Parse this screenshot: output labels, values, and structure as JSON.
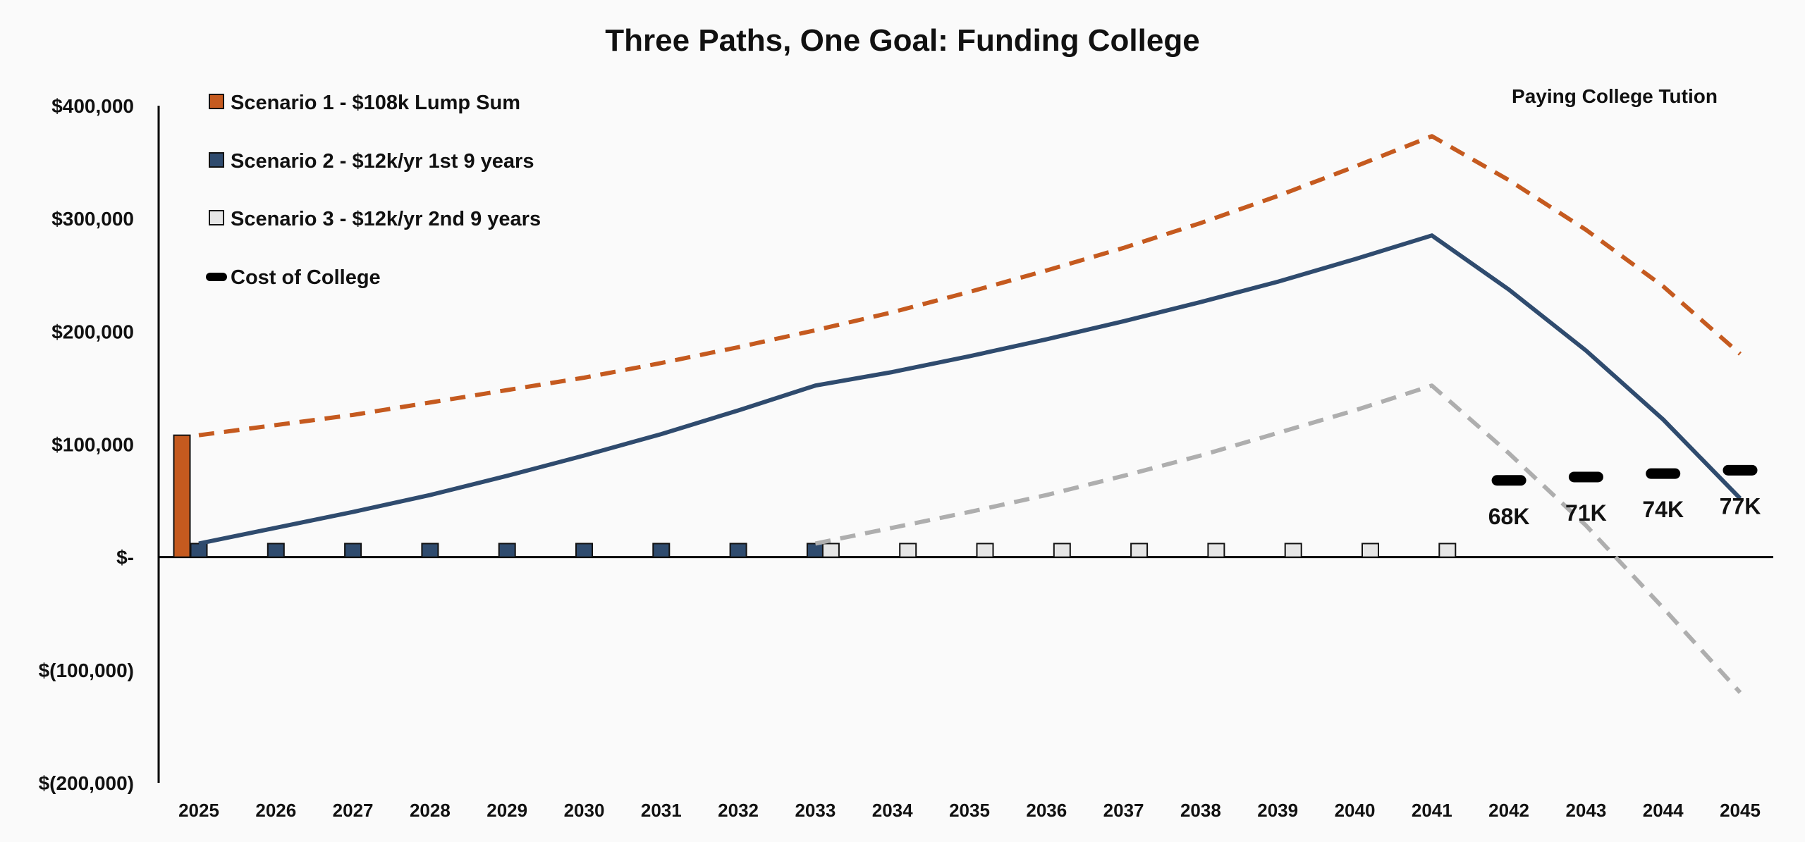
{
  "chart_data": {
    "type": "bar+line",
    "title": "Three Paths, One Goal: Funding College",
    "annotation": "Paying College Tution",
    "xlabel": "",
    "ylabel": "",
    "x": [
      "2025",
      "2026",
      "2027",
      "2028",
      "2029",
      "2030",
      "2031",
      "2032",
      "2033",
      "2034",
      "2035",
      "2036",
      "2037",
      "2038",
      "2039",
      "2040",
      "2041",
      "2042",
      "2043",
      "2044",
      "2045"
    ],
    "ylim": [
      -200000,
      400000
    ],
    "yticks": [
      400000,
      300000,
      200000,
      100000,
      0,
      -100000,
      -200000
    ],
    "ytick_labels": [
      "$400,000",
      "$300,000",
      "$200,000",
      "$100,000",
      "$-",
      "$(100,000)",
      "$(200,000)"
    ],
    "grid": false,
    "legend_position": "top-left",
    "legend": [
      {
        "label": "Scenario 1 - $108k Lump Sum",
        "color": "#c55a1f",
        "marker": "square"
      },
      {
        "label": "Scenario 2 - $12k/yr 1st 9 years",
        "color": "#2f4b6e",
        "marker": "square"
      },
      {
        "label": "Scenario 3 - $12k/yr 2nd 9 years",
        "color": "#e6e6e6",
        "marker": "square"
      },
      {
        "label": "Cost of College",
        "color": "#000000",
        "marker": "dash"
      }
    ],
    "bar_series": [
      {
        "name": "Scenario 1 - $108k Lump Sum",
        "color": "#c55a1f",
        "values": [
          108000,
          null,
          null,
          null,
          null,
          null,
          null,
          null,
          null,
          null,
          null,
          null,
          null,
          null,
          null,
          null,
          null,
          null,
          null,
          null,
          null
        ]
      },
      {
        "name": "Scenario 2 - $12k/yr 1st 9 years",
        "color": "#2f4b6e",
        "values": [
          12000,
          12000,
          12000,
          12000,
          12000,
          12000,
          12000,
          12000,
          12000,
          null,
          null,
          null,
          null,
          null,
          null,
          null,
          null,
          null,
          null,
          null,
          null
        ]
      },
      {
        "name": "Scenario 3 - $12k/yr 2nd 9 years",
        "color": "#e6e6e6",
        "values": [
          null,
          null,
          null,
          null,
          null,
          null,
          null,
          null,
          12000,
          12000,
          12000,
          12000,
          12000,
          12000,
          12000,
          12000,
          12000,
          null,
          null,
          null,
          null
        ]
      }
    ],
    "line_series": [
      {
        "name": "Scenario 1 - $108k Lump Sum",
        "color": "#c55a1f",
        "style": "dashed",
        "values": [
          108000,
          117000,
          126000,
          137000,
          148000,
          159000,
          172000,
          186000,
          201000,
          217000,
          235000,
          254000,
          274000,
          296000,
          320000,
          346000,
          373000,
          334000,
          290000,
          240000,
          180000
        ]
      },
      {
        "name": "Scenario 2 - $12k/yr 1st 9 years",
        "color": "#2f4b6e",
        "style": "solid",
        "values": [
          12000,
          26000,
          40000,
          55000,
          72000,
          90000,
          109000,
          130000,
          152000,
          164000,
          178000,
          193000,
          209000,
          226000,
          244000,
          264000,
          285000,
          237000,
          183000,
          122000,
          52000
        ]
      },
      {
        "name": "Scenario 3 - $12k/yr 2nd 9 years",
        "color": "#aeaeae",
        "style": "dashed",
        "values": [
          null,
          null,
          null,
          null,
          null,
          null,
          null,
          null,
          12000,
          26000,
          40000,
          55000,
          72000,
          90000,
          110000,
          130000,
          152000,
          92000,
          28000,
          -45000,
          -120000
        ]
      }
    ],
    "cost_of_college": {
      "name": "Cost of College",
      "color": "#000000",
      "x": [
        "2042",
        "2043",
        "2044",
        "2045"
      ],
      "values": [
        68000,
        71000,
        74000,
        77000
      ],
      "labels": [
        "68K",
        "71K",
        "74K",
        "77K"
      ]
    }
  }
}
